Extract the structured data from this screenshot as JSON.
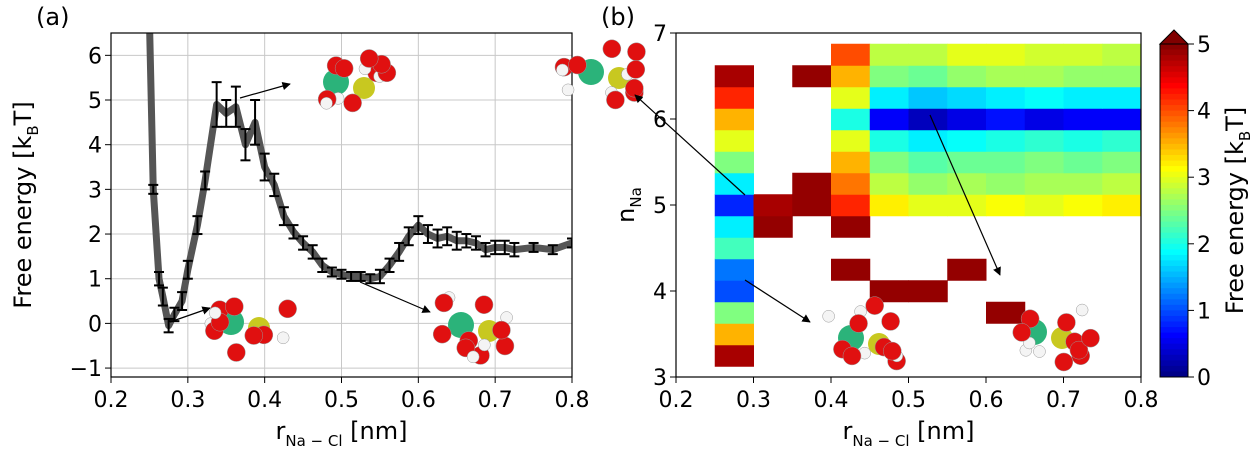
{
  "chart_data": [
    {
      "type": "line",
      "label": "(a)",
      "xlabel": {
        "text": "r",
        "sub": "Na − Cl",
        "after": " [nm]"
      },
      "ylabel": {
        "text": "Free energy [k",
        "sub": "B",
        "after": "T]"
      },
      "x": [
        0.25,
        0.255,
        0.2625,
        0.2675,
        0.275,
        0.2825,
        0.2925,
        0.3,
        0.3125,
        0.3225,
        0.3375,
        0.35,
        0.3625,
        0.375,
        0.3875,
        0.4,
        0.4125,
        0.425,
        0.4375,
        0.45,
        0.4625,
        0.475,
        0.4875,
        0.5,
        0.5125,
        0.525,
        0.5375,
        0.55,
        0.5625,
        0.575,
        0.5875,
        0.6,
        0.6125,
        0.625,
        0.6375,
        0.65,
        0.6625,
        0.675,
        0.6875,
        0.7,
        0.7125,
        0.725,
        0.75,
        0.775,
        0.8
      ],
      "values": [
        6.8,
        3.0,
        1.0,
        0.6,
        -0.05,
        0.2,
        0.5,
        1.2,
        2.2,
        3.2,
        4.9,
        4.7,
        4.85,
        4.0,
        4.5,
        3.5,
        3.1,
        2.4,
        2.05,
        1.8,
        1.6,
        1.3,
        1.15,
        1.1,
        1.05,
        1.05,
        1.0,
        1.05,
        1.3,
        1.6,
        1.95,
        2.2,
        2.0,
        1.9,
        1.95,
        1.85,
        1.85,
        1.8,
        1.65,
        1.7,
        1.7,
        1.65,
        1.7,
        1.65,
        1.8
      ],
      "errors": [
        0,
        0.1,
        0.15,
        0.2,
        0.15,
        0.15,
        0.2,
        0.2,
        0.2,
        0.2,
        0.5,
        0.3,
        0.45,
        0.35,
        0.5,
        0.3,
        0.25,
        0.2,
        0.15,
        0.15,
        0.15,
        0.15,
        0.1,
        0.1,
        0.1,
        0.1,
        0.1,
        0.15,
        0.15,
        0.2,
        0.2,
        0.2,
        0.2,
        0.2,
        0.2,
        0.2,
        0.15,
        0.15,
        0.15,
        0.15,
        0.15,
        0.15,
        0.1,
        0.1,
        0.1
      ],
      "color": "#555555",
      "xlim": [
        0.2,
        0.8
      ],
      "ylim": [
        -1.2,
        6.5
      ],
      "xticks": [
        0.2,
        0.3,
        0.4,
        0.5,
        0.6,
        0.7,
        0.8
      ],
      "yticks": [
        {
          "value": -1,
          "label": "−1"
        },
        0,
        1,
        2,
        3,
        4,
        5,
        6
      ],
      "grid": true
    },
    {
      "type": "contour",
      "label": "(b)",
      "xlabel": {
        "text": "r",
        "sub": "Na − Cl",
        "after": " [nm]"
      },
      "ylabel": {
        "text": "n",
        "sub": "Na",
        "after": ""
      },
      "x": [
        0.275,
        0.325,
        0.375,
        0.425,
        0.475,
        0.525,
        0.575,
        0.625,
        0.675,
        0.725,
        0.775
      ],
      "y": [
        3.25,
        3.5,
        3.75,
        4.0,
        4.25,
        4.5,
        4.75,
        5.0,
        5.25,
        5.5,
        5.75,
        6.0,
        6.25,
        6.5,
        6.75
      ],
      "z": [
        [
          4.8,
          null,
          null,
          null,
          null,
          null,
          null,
          null,
          null,
          null,
          null
        ],
        [
          3.5,
          null,
          null,
          null,
          null,
          null,
          null,
          null,
          null,
          null,
          null
        ],
        [
          2.5,
          null,
          null,
          null,
          null,
          null,
          null,
          4.9,
          null,
          null,
          null
        ],
        [
          1.0,
          null,
          null,
          null,
          4.9,
          4.9,
          null,
          null,
          null,
          null,
          null
        ],
        [
          1.2,
          null,
          null,
          4.9,
          null,
          null,
          4.9,
          null,
          null,
          null,
          null
        ],
        [
          2.2,
          null,
          null,
          null,
          null,
          null,
          null,
          null,
          null,
          null,
          null
        ],
        [
          1.8,
          4.9,
          null,
          4.9,
          null,
          null,
          null,
          null,
          null,
          null,
          null
        ],
        [
          0.8,
          4.8,
          4.9,
          4.2,
          3.2,
          3.0,
          3.0,
          3.1,
          3.0,
          3.1,
          3.2
        ],
        [
          1.8,
          null,
          4.9,
          3.8,
          2.8,
          2.6,
          2.7,
          2.6,
          2.7,
          2.7,
          2.8
        ],
        [
          2.5,
          null,
          null,
          3.5,
          2.5,
          2.3,
          2.4,
          2.4,
          2.5,
          2.4,
          2.5
        ],
        [
          3.0,
          null,
          null,
          3.0,
          2.0,
          1.8,
          1.9,
          2.0,
          2.1,
          2.0,
          2.1
        ],
        [
          3.5,
          null,
          null,
          2.0,
          0.6,
          0.3,
          0.5,
          0.7,
          0.5,
          0.6,
          0.6
        ],
        [
          4.2,
          null,
          null,
          3.0,
          1.8,
          1.6,
          1.7,
          1.8,
          1.9,
          1.8,
          1.8
        ],
        [
          4.8,
          null,
          4.9,
          3.5,
          2.5,
          2.4,
          2.6,
          2.7,
          2.7,
          2.6,
          2.6
        ],
        [
          null,
          null,
          null,
          4.0,
          2.8,
          2.8,
          3.0,
          3.0,
          2.9,
          2.9,
          2.8
        ]
      ],
      "cmap": "jet",
      "clim": [
        0,
        5
      ],
      "colorbar_ticks": [
        0,
        1,
        2,
        3,
        4,
        5
      ],
      "colorbar_label": {
        "text": "Free energy [k",
        "sub": "B",
        "after": "T]"
      },
      "xlim": [
        0.2,
        0.8
      ],
      "ylim": [
        3,
        7
      ],
      "xticks": [
        0.2,
        0.3,
        0.4,
        0.5,
        0.6,
        0.7,
        0.8
      ],
      "yticks": [
        3,
        4,
        5,
        6,
        7
      ],
      "grid": false
    }
  ]
}
